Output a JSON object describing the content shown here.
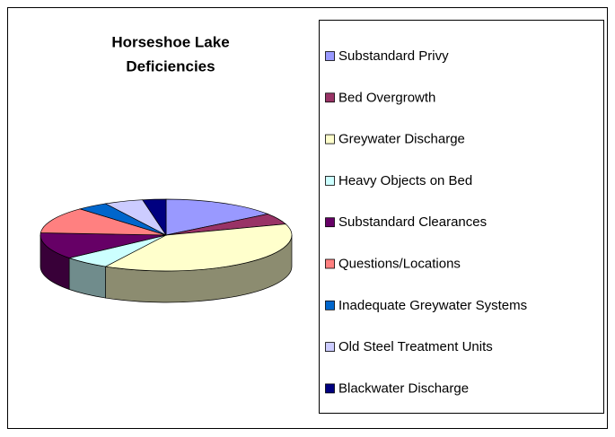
{
  "chart_data": {
    "type": "pie3d",
    "title_lines": [
      "Horseshoe Lake",
      "Deficiencies"
    ],
    "categories": [
      "Substandard Privy",
      "Bed Overgrowth",
      "Greywater Discharge",
      "Heavy Objects on Bed",
      "Substandard Clearances",
      "Questions/Locations",
      "Inadequate Greywater Systems",
      "Old Steel Treatment Units",
      "Blackwater Discharge"
    ],
    "values": [
      15,
      5,
      38,
      6,
      12,
      12,
      4,
      5,
      3
    ],
    "colors": [
      "#9999ff",
      "#993366",
      "#ffffcc",
      "#ccffff",
      "#660066",
      "#ff8080",
      "#0066cc",
      "#ccccff",
      "#000080"
    ],
    "legend": "right"
  }
}
